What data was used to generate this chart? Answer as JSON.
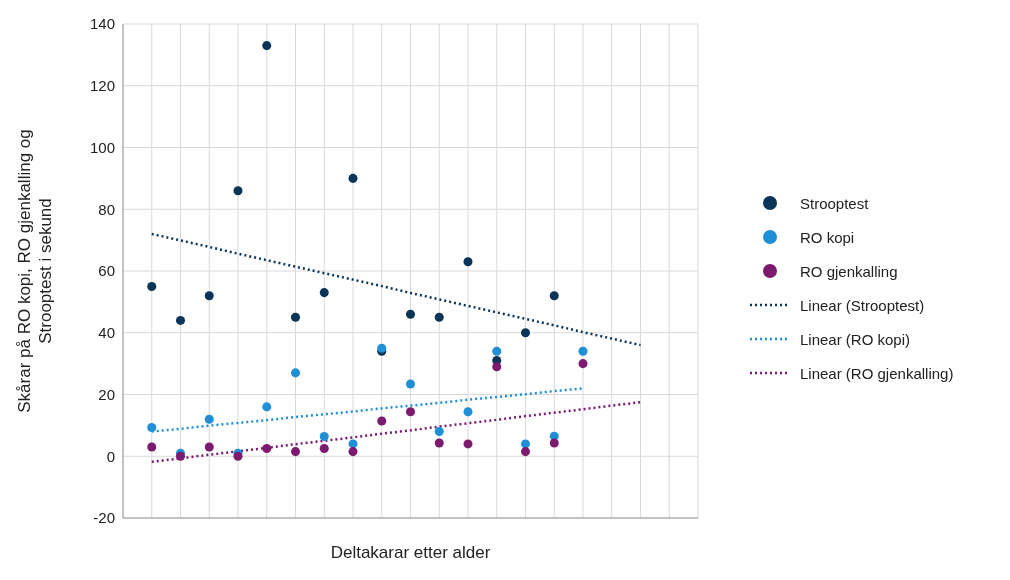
{
  "chart_data": {
    "type": "scatter",
    "xlabel": "Deltakarar etter alder",
    "ylabel": "Skårar på RO kopi, RO gjenkalling og Strooptest i sekund",
    "categories": [
      null,
      null,
      null,
      null,
      null,
      null,
      null,
      null,
      null,
      null,
      null,
      null,
      null,
      null,
      null,
      null,
      null,
      null,
      null
    ],
    "series": [
      {
        "name": "Strooptest",
        "color": "#0b3558",
        "values": [
          55,
          44,
          52,
          86,
          133,
          45,
          53,
          90,
          34,
          46,
          45,
          63,
          31,
          40,
          52,
          null,
          null,
          null,
          null
        ]
      },
      {
        "name": "RO kopi",
        "color": "#1f8fd6",
        "values": [
          9.3,
          1,
          12,
          1,
          16,
          27,
          6.4,
          4,
          35,
          23.4,
          8,
          14.4,
          34,
          4,
          6.5,
          34,
          null,
          null,
          null
        ]
      },
      {
        "name": "RO gjenkalling",
        "color": "#7b1a6e",
        "values": [
          3,
          0,
          3,
          0,
          2.5,
          1.5,
          2.5,
          1.5,
          11.4,
          14.4,
          4.3,
          4,
          29,
          1.5,
          4.3,
          30,
          null,
          null,
          null
        ]
      },
      {
        "name": "Linear (Strooptest)",
        "type": "line",
        "line_style": "dotted",
        "marker": "none",
        "color": "#0b3558",
        "values": [
          72,
          69.9,
          67.8,
          65.6,
          63.5,
          61.4,
          59.3,
          57.2,
          55.1,
          52.9,
          50.8,
          48.7,
          46.6,
          44.5,
          42.4,
          40.2,
          38.1,
          36,
          null
        ]
      },
      {
        "name": "Linear (RO kopi)",
        "type": "line",
        "line_style": "dotted",
        "marker": "none",
        "color": "#1f8fd6",
        "values": [
          8,
          8.9,
          9.9,
          10.8,
          11.7,
          12.7,
          13.6,
          14.5,
          15.5,
          16.4,
          17.3,
          18.3,
          19.2,
          20.1,
          21.1,
          22,
          null,
          null,
          null
        ]
      },
      {
        "name": "Linear (RO gjenkalling)",
        "type": "line",
        "line_style": "dotted",
        "marker": "none",
        "color": "#7b1a6e",
        "values": [
          -1.8,
          -0.7,
          0.5,
          1.6,
          2.7,
          3.9,
          5,
          6.1,
          7.3,
          8.4,
          9.6,
          10.7,
          11.8,
          13,
          14.1,
          15.2,
          16.4,
          17.5,
          null
        ]
      }
    ],
    "ylim": [
      -20,
      140
    ],
    "yticks": [
      -20,
      0,
      20,
      40,
      60,
      80,
      100,
      120,
      140
    ],
    "grid": true,
    "legend": "right",
    "marker": "circle"
  }
}
